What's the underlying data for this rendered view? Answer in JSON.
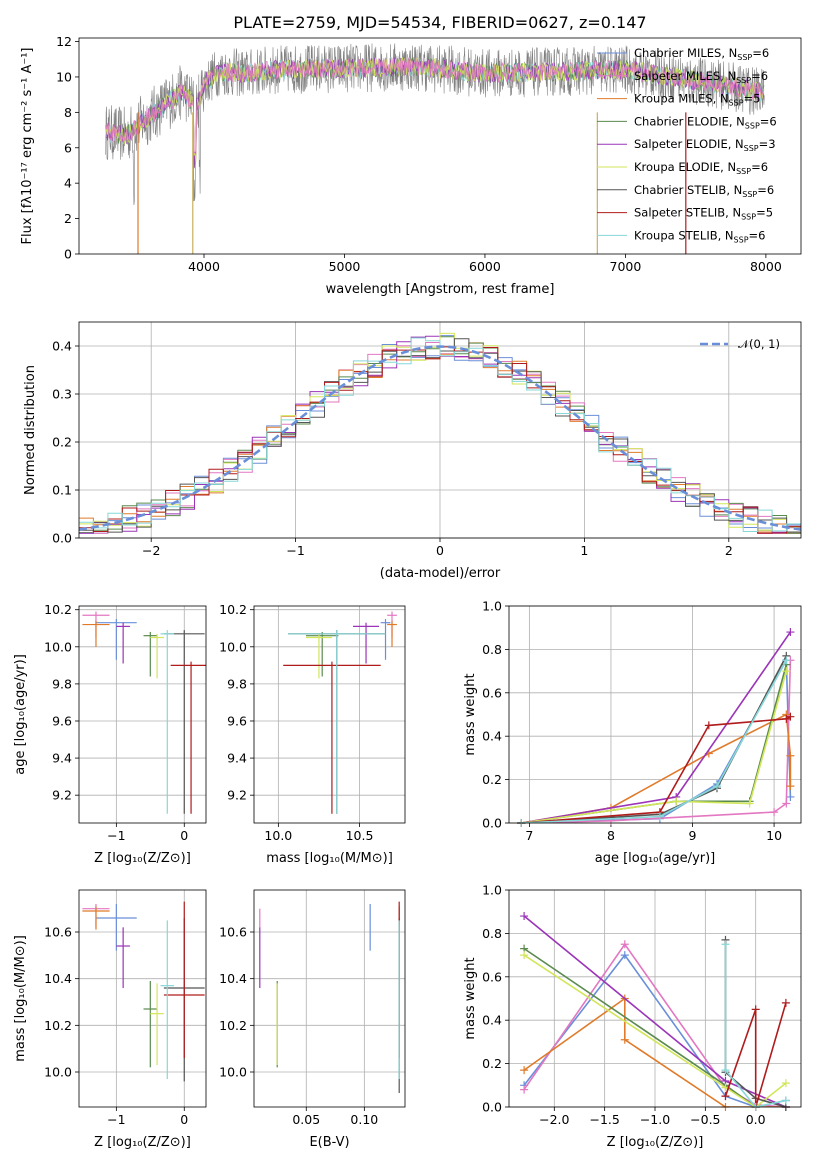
{
  "colors": [
    "#6a8fd9",
    "#e07b2b",
    "#e07b2b",
    "#5a8a4e",
    "#9b34b8",
    "#d2e65a",
    "#555555",
    "#b01c1c",
    "#86d8d8"
  ],
  "chart_data": [
    {
      "type": "line",
      "title": "PLATE=2759, MJD=54534, FIBERID=0627, z=0.147",
      "xlabel": "wavelength [Angstrom, rest frame]",
      "ylabel": "Flux [fλ10⁻¹⁷ erg cm⁻² s⁻¹ A⁻¹]",
      "xlim": [
        3110,
        8250
      ],
      "ylim": [
        0,
        12.2
      ],
      "xticks": [
        "4000",
        "5000",
        "6000",
        "7000",
        "8000"
      ],
      "yticks": [
        "0",
        "2",
        "4",
        "6",
        "8",
        "10",
        "12"
      ],
      "grid": false,
      "legend_position": "upper right",
      "legend": [
        {
          "label": "Chabrier MILES, N",
          "sub": "SSP",
          "suffix": "=6",
          "color": "#6a8fd9"
        },
        {
          "label": "Salpeter MILES, N",
          "sub": "SSP",
          "suffix": "=6",
          "color": "#e377c2"
        },
        {
          "label": "Kroupa MILES, N",
          "sub": "SSP",
          "suffix": "=5",
          "color": "#e07b2b"
        },
        {
          "label": "Chabrier ELODIE, N",
          "sub": "SSP",
          "suffix": "=6",
          "color": "#5a8a4e"
        },
        {
          "label": "Salpeter ELODIE, N",
          "sub": "SSP",
          "suffix": "=3",
          "color": "#9b34b8"
        },
        {
          "label": "Kroupa ELODIE, N",
          "sub": "SSP",
          "suffix": "=6",
          "color": "#d2e65a"
        },
        {
          "label": "Chabrier STELIB, N",
          "sub": "SSP",
          "suffix": "=6",
          "color": "#555555"
        },
        {
          "label": "Salpeter STELIB, N",
          "sub": "SSP",
          "suffix": "=5",
          "color": "#b01c1c"
        },
        {
          "label": "Kroupa STELIB, N",
          "sub": "SSP",
          "suffix": "=6",
          "color": "#86d8d8"
        }
      ],
      "series_envelope": {
        "x": [
          3300,
          3450,
          3550,
          3700,
          3850,
          3950,
          4000,
          4100,
          4300,
          4500,
          5000,
          5500,
          6000,
          6500,
          7000,
          7500,
          8000
        ],
        "y": [
          6.9,
          6.7,
          7.4,
          8.3,
          9.2,
          8.3,
          9.6,
          10.3,
          10.2,
          10.4,
          10.5,
          10.6,
          10.2,
          10.3,
          10.4,
          9.8,
          9.1
        ]
      }
    },
    {
      "type": "step",
      "xlabel": "(data-model)/error",
      "ylabel": "Normed distribution",
      "xlim": [
        -2.5,
        2.5
      ],
      "ylim": [
        0,
        0.45
      ],
      "xticks": [
        "−2",
        "−1",
        "0",
        "1",
        "2"
      ],
      "yticks": [
        "0.0",
        "0.1",
        "0.2",
        "0.3",
        "0.4"
      ],
      "grid": true,
      "legend": [
        {
          "label": "𝒩(0, 1)",
          "style": "dashed",
          "color": "#6a8fd9"
        }
      ],
      "legend_position": "upper right",
      "bin_edges_start": -2.5,
      "bin_width": 0.1,
      "model_series_count": 9
    },
    {
      "type": "errorbar",
      "xlabel": "Z [log₁₀(Z/Z⊙)]",
      "ylabel": "age  [log₁₀(age/yr)]",
      "xlim": [
        -1.55,
        0.32
      ],
      "ylim": [
        9.05,
        10.22
      ],
      "xticks": [
        "−1",
        "0"
      ],
      "yticks": [
        "9.2",
        "9.4",
        "9.6",
        "9.8",
        "10.0",
        "10.2"
      ],
      "grid": true,
      "points": [
        {
          "x": -1.0,
          "y": 10.13,
          "xerr": 0.3,
          "yerr": [
            0.2,
            0.02
          ]
        },
        {
          "x": -1.3,
          "y": 10.17,
          "xerr": 0.2,
          "yerr": [
            0.12,
            0.02
          ]
        },
        {
          "x": -1.3,
          "y": 10.12,
          "xerr": 0.2,
          "yerr": [
            0.12,
            0.02
          ]
        },
        {
          "x": -0.5,
          "y": 10.06,
          "xerr": 0.1,
          "yerr": [
            0.22,
            0.02
          ]
        },
        {
          "x": -0.9,
          "y": 10.11,
          "xerr": 0.1,
          "yerr": [
            0.2,
            0.02
          ]
        },
        {
          "x": -0.4,
          "y": 10.05,
          "xerr": 0.1,
          "yerr": [
            0.22,
            0.02
          ]
        },
        {
          "x": 0.0,
          "y": 10.07,
          "xerr": 0.3,
          "yerr": [
            0.97,
            0.02
          ]
        },
        {
          "x": 0.1,
          "y": 9.9,
          "xerr": 0.3,
          "yerr": [
            0.8,
            0.02
          ]
        },
        {
          "x": -0.25,
          "y": 10.07,
          "xerr": 0.1,
          "yerr": [
            0.97,
            0.02
          ]
        }
      ]
    },
    {
      "type": "errorbar",
      "xlabel": "mass [log₁₀(M/M⊙)]",
      "ylabel": "",
      "xlim": [
        9.85,
        10.78
      ],
      "ylim": [
        9.05,
        10.22
      ],
      "xticks": [
        "10.0",
        "10.5"
      ],
      "yticks": [
        "9.2",
        "9.4",
        "9.6",
        "9.8",
        "10.0",
        "10.2"
      ],
      "grid": true,
      "points": [
        {
          "x": 10.66,
          "y": 10.13,
          "xerr": 0.03,
          "yerr": [
            0.2,
            0.02
          ]
        },
        {
          "x": 10.7,
          "y": 10.17,
          "xerr": 0.03,
          "yerr": [
            0.12,
            0.02
          ]
        },
        {
          "x": 10.7,
          "y": 10.12,
          "xerr": 0.03,
          "yerr": [
            0.12,
            0.02
          ]
        },
        {
          "x": 10.27,
          "y": 10.06,
          "xerr": 0.1,
          "yerr": [
            0.22,
            0.02
          ]
        },
        {
          "x": 10.54,
          "y": 10.11,
          "xerr": 0.08,
          "yerr": [
            0.2,
            0.02
          ]
        },
        {
          "x": 10.25,
          "y": 10.05,
          "xerr": 0.08,
          "yerr": [
            0.22,
            0.02
          ]
        },
        {
          "x": 10.36,
          "y": 10.07,
          "xerr": 0.3,
          "yerr": [
            0.97,
            0.02
          ]
        },
        {
          "x": 10.33,
          "y": 9.9,
          "xerr": 0.3,
          "yerr": [
            0.8,
            0.02
          ]
        },
        {
          "x": 10.36,
          "y": 10.07,
          "xerr": 0.3,
          "yerr": [
            0.97,
            0.02
          ]
        }
      ]
    },
    {
      "type": "line",
      "xlabel": "age  [log₁₀(age/yr)]",
      "ylabel": "mass weight",
      "xlim": [
        6.75,
        10.33
      ],
      "ylim": [
        0,
        1.0
      ],
      "xticks": [
        "7",
        "8",
        "9",
        "10"
      ],
      "yticks": [
        "0.0",
        "0.2",
        "0.4",
        "0.6",
        "0.8",
        "1.0"
      ],
      "grid": true,
      "series": [
        {
          "name": "Chabrier MILES",
          "x": [
            6.9,
            8.6,
            9.3,
            10.15,
            10.2
          ],
          "y": [
            0.0,
            0.02,
            0.18,
            0.75,
            0.12
          ]
        },
        {
          "name": "Salpeter MILES",
          "x": [
            6.9,
            8.0,
            10.0,
            10.15,
            10.2
          ],
          "y": [
            0.0,
            0.01,
            0.05,
            0.09,
            0.75
          ]
        },
        {
          "name": "Kroupa MILES",
          "x": [
            6.9,
            8.0,
            9.2,
            10.15,
            10.2,
            10.2
          ],
          "y": [
            0.0,
            0.07,
            0.32,
            0.5,
            0.31,
            0.17
          ]
        },
        {
          "name": "Chabrier ELODIE",
          "x": [
            6.9,
            8.8,
            9.7,
            10.15
          ],
          "y": [
            0.0,
            0.1,
            0.1,
            0.73
          ]
        },
        {
          "name": "Salpeter ELODIE",
          "x": [
            6.9,
            8.8,
            10.2
          ],
          "y": [
            0.0,
            0.12,
            0.88
          ]
        },
        {
          "name": "Kroupa ELODIE",
          "x": [
            6.9,
            8.8,
            9.7,
            10.15
          ],
          "y": [
            0.0,
            0.1,
            0.09,
            0.7
          ]
        },
        {
          "name": "Chabrier STELIB",
          "x": [
            6.9,
            8.6,
            9.3,
            10.15
          ],
          "y": [
            0.0,
            0.04,
            0.16,
            0.77
          ]
        },
        {
          "name": "Salpeter STELIB",
          "x": [
            6.9,
            8.6,
            9.2,
            10.15,
            10.2
          ],
          "y": [
            0.0,
            0.05,
            0.45,
            0.48,
            0.49
          ]
        },
        {
          "name": "Kroupa STELIB",
          "x": [
            6.9,
            8.6,
            9.3,
            10.15
          ],
          "y": [
            0.0,
            0.03,
            0.17,
            0.75
          ]
        }
      ]
    },
    {
      "type": "errorbar",
      "xlabel": "Z [log₁₀(Z/Z⊙)]",
      "ylabel": "mass [log₁₀(M/M⊙)]",
      "xlim": [
        -1.55,
        0.32
      ],
      "ylim": [
        9.85,
        10.78
      ],
      "xticks": [
        "−1",
        "0"
      ],
      "yticks": [
        "10.0",
        "10.2",
        "10.4",
        "10.6"
      ],
      "grid": true,
      "points": [
        {
          "x": -1.0,
          "y": 10.66,
          "xerr": 0.3,
          "yerr": [
            0.14,
            0.06
          ]
        },
        {
          "x": -1.3,
          "y": 10.7,
          "xerr": 0.2,
          "yerr": [
            0.08,
            0.02
          ]
        },
        {
          "x": -1.3,
          "y": 10.69,
          "xerr": 0.2,
          "yerr": [
            0.08,
            0.02
          ]
        },
        {
          "x": -0.5,
          "y": 10.27,
          "xerr": 0.1,
          "yerr": [
            0.25,
            0.12
          ]
        },
        {
          "x": -0.9,
          "y": 10.54,
          "xerr": 0.1,
          "yerr": [
            0.18,
            0.08
          ]
        },
        {
          "x": -0.4,
          "y": 10.25,
          "xerr": 0.1,
          "yerr": [
            0.22,
            0.13
          ]
        },
        {
          "x": 0.0,
          "y": 10.36,
          "xerr": 0.3,
          "yerr": [
            0.4,
            0.3
          ]
        },
        {
          "x": 0.0,
          "y": 10.33,
          "xerr": 0.3,
          "yerr": [
            0.27,
            0.4
          ]
        },
        {
          "x": -0.25,
          "y": 10.37,
          "xerr": 0.1,
          "yerr": [
            0.4,
            0.28
          ]
        }
      ]
    },
    {
      "type": "errorbar",
      "xlabel": "E(B-V)",
      "ylabel": "",
      "xlim": [
        0.005,
        0.135
      ],
      "ylim": [
        9.85,
        10.78
      ],
      "xticks": [
        "0.05",
        "0.10"
      ],
      "yticks": [
        "10.0",
        "10.2",
        "10.4",
        "10.6"
      ],
      "grid": true,
      "points": [
        {
          "x": 0.105,
          "y": 10.66,
          "xerr": 0,
          "yerr": [
            0.14,
            0.06
          ]
        },
        {
          "x": 0.01,
          "y": 10.66,
          "xerr": 0,
          "yerr": [
            0.04,
            0.04
          ]
        },
        {
          "x": 0.13,
          "y": 10.69,
          "xerr": 0,
          "yerr": [
            0.06,
            0.02
          ]
        },
        {
          "x": 0.025,
          "y": 10.27,
          "xerr": 0,
          "yerr": [
            0.25,
            0.12
          ]
        },
        {
          "x": 0.01,
          "y": 10.54,
          "xerr": 0,
          "yerr": [
            0.18,
            0.08
          ]
        },
        {
          "x": 0.025,
          "y": 10.25,
          "xerr": 0,
          "yerr": [
            0.22,
            0.13
          ]
        },
        {
          "x": 0.13,
          "y": 10.36,
          "xerr": 0,
          "yerr": [
            0.45,
            0.3
          ]
        },
        {
          "x": 0.13,
          "y": 10.33,
          "xerr": 0,
          "yerr": [
            0.27,
            0.4
          ]
        },
        {
          "x": 0.13,
          "y": 10.37,
          "xerr": 0,
          "yerr": [
            0.4,
            0.28
          ]
        }
      ]
    },
    {
      "type": "line",
      "xlabel": "Z [log₁₀(Z/Z⊙)]",
      "ylabel": "mass weight",
      "xlim": [
        -2.45,
        0.45
      ],
      "ylim": [
        0,
        1.0
      ],
      "xticks": [
        "−2.0",
        "−1.5",
        "−1.0",
        "−0.5",
        "0.0"
      ],
      "yticks": [
        "0.0",
        "0.2",
        "0.4",
        "0.6",
        "0.8",
        "1.0"
      ],
      "grid": true,
      "series": [
        {
          "name": "Chabrier MILES",
          "x": [
            -2.3,
            -1.3,
            -0.3,
            0.0,
            0.3
          ],
          "y": [
            0.1,
            0.7,
            0.05,
            0.0,
            0.03
          ]
        },
        {
          "name": "Salpeter MILES",
          "x": [
            -2.3,
            -1.3,
            -0.3,
            0.0,
            0.3
          ],
          "y": [
            0.08,
            0.75,
            0.09,
            0.01,
            0.0
          ]
        },
        {
          "name": "Kroupa MILES",
          "x": [
            -2.3,
            -1.3,
            -1.3,
            -0.3,
            0.0,
            0.3
          ],
          "y": [
            0.17,
            0.5,
            0.31,
            0.0,
            0.0,
            0.0
          ]
        },
        {
          "name": "Chabrier ELODIE",
          "x": [
            -2.3,
            -0.3,
            0.0
          ],
          "y": [
            0.73,
            0.1,
            0.0
          ]
        },
        {
          "name": "Salpeter ELODIE",
          "x": [
            -2.3,
            -0.3,
            0.3
          ],
          "y": [
            0.88,
            0.12,
            0.0
          ]
        },
        {
          "name": "Kroupa ELODIE",
          "x": [
            -2.3,
            -0.3,
            0.0,
            0.3
          ],
          "y": [
            0.7,
            0.09,
            0.0,
            0.11
          ]
        },
        {
          "name": "Chabrier STELIB",
          "x": [
            -0.3,
            -0.3,
            0.0,
            0.3
          ],
          "y": [
            0.77,
            0.16,
            0.04,
            0.0
          ]
        },
        {
          "name": "Salpeter STELIB",
          "x": [
            -0.3,
            0.0,
            0.0,
            0.3
          ],
          "y": [
            0.05,
            0.45,
            0.0,
            0.48
          ]
        },
        {
          "name": "Kroupa STELIB",
          "x": [
            -0.3,
            -0.3,
            0.0,
            0.3
          ],
          "y": [
            0.75,
            0.17,
            0.0,
            0.03
          ]
        }
      ]
    }
  ]
}
